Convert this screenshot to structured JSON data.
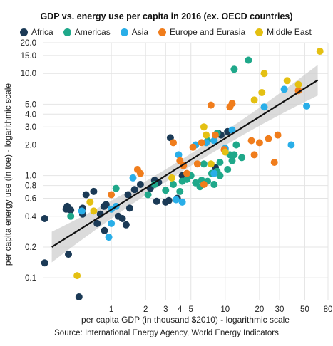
{
  "chart_data": {
    "type": "scatter",
    "title": "GDP vs. energy use per capita in 2016 (ex. OECD countries)",
    "xlabel": "per capita GDP (in thousand $2010) - logarithmic scale",
    "ylabel": "per capita energy use (in toe) - logarithmic scale",
    "source": "Source: International Energy Agency, World Energy Indicators",
    "x_scale": "log",
    "y_scale": "log",
    "xlim": [
      0.25,
      80
    ],
    "ylim": [
      0.06,
      20
    ],
    "x_ticks": [
      1,
      2,
      3,
      4,
      5,
      10,
      20,
      30,
      50,
      80
    ],
    "x_tick_labels": [
      "1",
      "2",
      "3",
      "4",
      "5",
      "10",
      "20",
      "30",
      "50",
      "80"
    ],
    "y_ticks": [
      0.1,
      0.2,
      0.4,
      0.6,
      0.8,
      1.0,
      2.0,
      3.0,
      4.0,
      5.0,
      10.0,
      15.0,
      20.0
    ],
    "y_tick_labels": [
      "0.1",
      "0.2",
      "0.4",
      "0.6",
      "0.8",
      "1.0",
      "2.0",
      "3.0",
      "4.0",
      "5.0",
      "10.0",
      "15.0",
      "20.0"
    ],
    "grid": true,
    "legend": "top",
    "series": [
      {
        "name": "Africa",
        "color": "#1b3a56",
        "points": [
          [
            0.26,
            0.38
          ],
          [
            0.26,
            0.14
          ],
          [
            0.4,
            0.47
          ],
          [
            0.41,
            0.5
          ],
          [
            0.42,
            0.47
          ],
          [
            0.44,
            0.46
          ],
          [
            0.42,
            0.17
          ],
          [
            0.6,
            0.65
          ],
          [
            0.56,
            0.48
          ],
          [
            0.56,
            0.42
          ],
          [
            0.7,
            0.7
          ],
          [
            0.75,
            0.34
          ],
          [
            0.8,
            0.42
          ],
          [
            0.86,
            0.5
          ],
          [
            0.9,
            0.52
          ],
          [
            0.87,
            0.29
          ],
          [
            0.52,
            0.065
          ],
          [
            1.15,
            0.4
          ],
          [
            1.25,
            0.38
          ],
          [
            1.35,
            0.33
          ],
          [
            1.45,
            0.48
          ],
          [
            1.4,
            0.65
          ],
          [
            1.6,
            0.73
          ],
          [
            1.8,
            0.82
          ],
          [
            2.2,
            0.75
          ],
          [
            2.4,
            0.9
          ],
          [
            2.5,
            0.56
          ],
          [
            3,
            0.55
          ],
          [
            3.2,
            0.57
          ],
          [
            3.8,
            0.6
          ],
          [
            3.3,
            2.35
          ],
          [
            2.6,
            0.86
          ],
          [
            4.2,
            1.0
          ],
          [
            8.7,
            2.6
          ],
          [
            9.2,
            2.5
          ],
          [
            10.5,
            2.7
          ],
          [
            8.2,
            1.2
          ]
        ]
      },
      {
        "name": "Americas",
        "color": "#1fa88a",
        "points": [
          [
            0.44,
            0.4
          ],
          [
            1.1,
            0.75
          ],
          [
            2.1,
            0.65
          ],
          [
            2.4,
            0.82
          ],
          [
            3.0,
            0.72
          ],
          [
            3.5,
            0.82
          ],
          [
            4.0,
            0.7
          ],
          [
            4.2,
            0.88
          ],
          [
            4.6,
            0.92
          ],
          [
            5.0,
            1.0
          ],
          [
            5.5,
            0.85
          ],
          [
            6.0,
            0.78
          ],
          [
            6.2,
            0.9
          ],
          [
            6.5,
            1.3
          ],
          [
            7.0,
            0.88
          ],
          [
            7.6,
            1.05
          ],
          [
            8.0,
            0.82
          ],
          [
            8.5,
            1.1
          ],
          [
            9.0,
            1.35
          ],
          [
            10.0,
            1.8
          ],
          [
            11.0,
            1.6
          ],
          [
            11.5,
            1.4
          ],
          [
            12.0,
            1.6
          ],
          [
            10.5,
            1.15
          ],
          [
            14.0,
            1.5
          ],
          [
            12.0,
            11.0
          ],
          [
            16.0,
            13.5
          ],
          [
            8.5,
            2.6
          ],
          [
            7.0,
            2.2
          ],
          [
            9.0,
            1.0
          ],
          [
            12.5,
            2.0
          ]
        ]
      },
      {
        "name": "Asia",
        "color": "#29aee8",
        "points": [
          [
            0.55,
            0.45
          ],
          [
            0.95,
            0.25
          ],
          [
            1.0,
            0.34
          ],
          [
            1.0,
            0.47
          ],
          [
            1.1,
            0.5
          ],
          [
            1.55,
            0.95
          ],
          [
            3.7,
            0.58
          ],
          [
            3.9,
            1.6
          ],
          [
            5.5,
            2.0
          ],
          [
            6.8,
            2.1
          ],
          [
            8.0,
            2.2
          ],
          [
            8.0,
            1.05
          ],
          [
            10.0,
            1.85
          ],
          [
            11.5,
            2.8
          ],
          [
            22.0,
            4.7
          ],
          [
            33.0,
            7.0
          ],
          [
            38.0,
            2.0
          ],
          [
            52.0,
            4.8
          ],
          [
            4.2,
            0.55
          ]
        ]
      },
      {
        "name": "Europe and Eurasia",
        "color": "#f07d1c",
        "points": [
          [
            1.0,
            0.65
          ],
          [
            1.7,
            1.15
          ],
          [
            1.8,
            1.05
          ],
          [
            3.5,
            2.1
          ],
          [
            4.0,
            1.4
          ],
          [
            4.3,
            1.25
          ],
          [
            4.6,
            1.05
          ],
          [
            5.2,
            1.9
          ],
          [
            5.7,
            1.3
          ],
          [
            6.2,
            2.1
          ],
          [
            6.5,
            0.82
          ],
          [
            7.5,
            4.9
          ],
          [
            8.2,
            2.5
          ],
          [
            9.8,
            1.8
          ],
          [
            11.0,
            4.7
          ],
          [
            11.5,
            5.1
          ],
          [
            17.0,
            2.2
          ],
          [
            18.0,
            1.6
          ],
          [
            20.0,
            2.1
          ],
          [
            24.0,
            2.3
          ],
          [
            27.0,
            1.35
          ],
          [
            29.0,
            2.5
          ],
          [
            44.0,
            6.8
          ]
        ]
      },
      {
        "name": "Middle East",
        "color": "#e4c012",
        "points": [
          [
            0.5,
            0.105
          ],
          [
            0.65,
            0.55
          ],
          [
            0.7,
            0.45
          ],
          [
            3.4,
            0.95
          ],
          [
            6.5,
            3.0
          ],
          [
            6.8,
            2.5
          ],
          [
            7.5,
            1.3
          ],
          [
            10.0,
            1.7
          ],
          [
            18.0,
            5.5
          ],
          [
            21.0,
            6.5
          ],
          [
            22.0,
            10.0
          ],
          [
            35.0,
            8.5
          ],
          [
            44.0,
            7.8
          ],
          [
            68.0,
            16.5
          ]
        ]
      }
    ],
    "trendline": {
      "x": [
        0.3,
        65
      ],
      "y": [
        0.2,
        8.6
      ]
    }
  }
}
